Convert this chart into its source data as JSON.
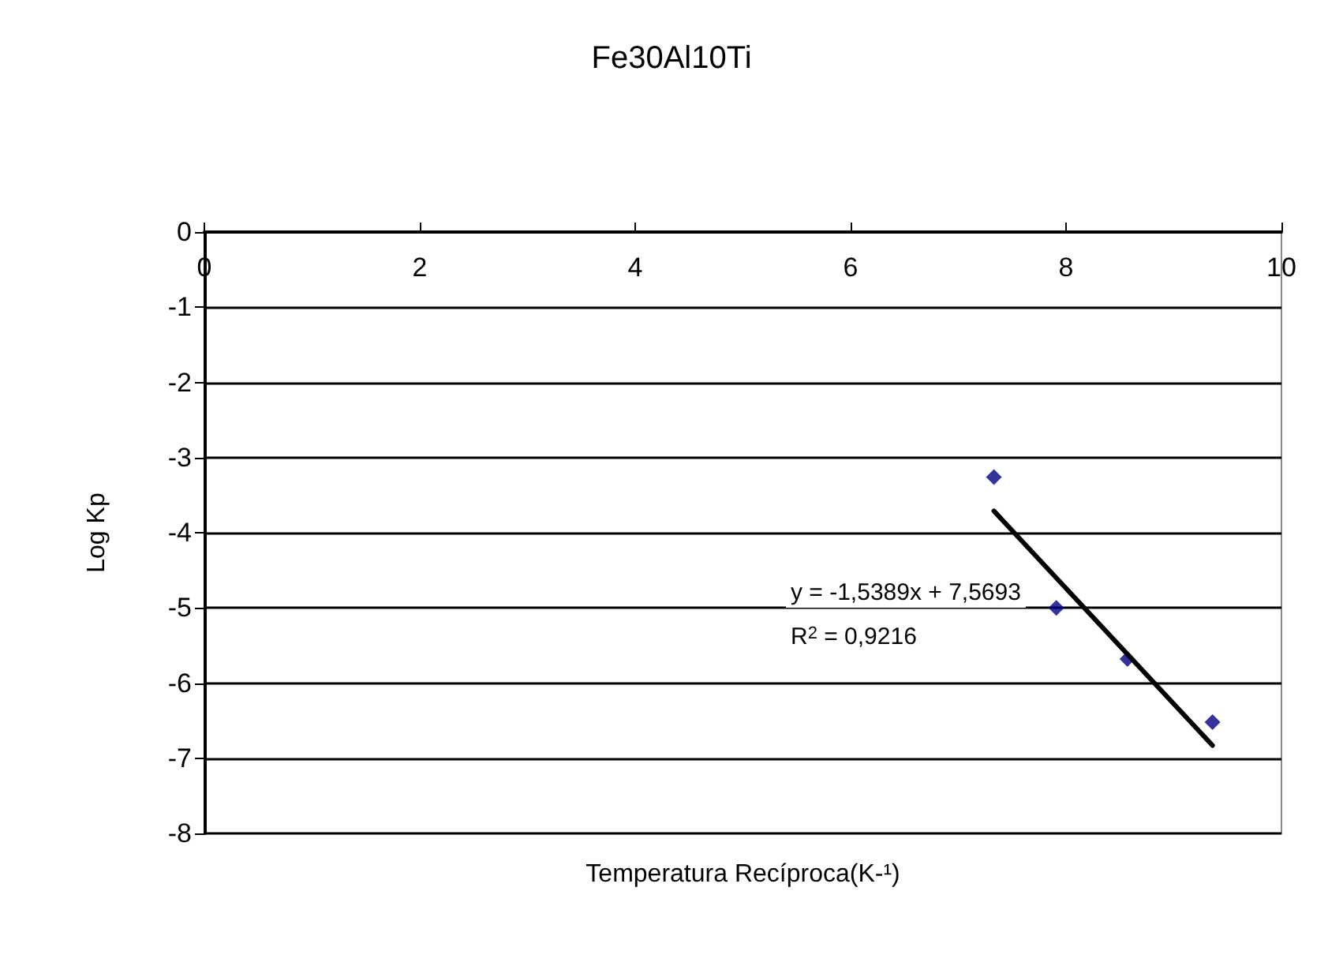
{
  "chart_data": {
    "type": "scatter",
    "title": "Fe30Al10Ti",
    "xlabel": "Temperatura Recíproca(K-¹)",
    "ylabel": "Log Kp",
    "annotations": [
      "y = -1,5389x + 7,5693",
      "R$^{2}$ = 0,9216"
    ],
    "series": [
      {
        "color": "#000080",
        "marker": "diamond",
        "x": [
          7.33,
          7.91,
          8.57,
          9.36
        ],
        "values": [
          -3.26,
          -5.0,
          -5.68,
          -6.52
        ]
      },
      {
        "type": "line",
        "color": "#000000",
        "marker": "none",
        "x": [
          7.33,
          9.36
        ],
        "values": [
          -3.71,
          -6.83
        ]
      }
    ],
    "xlim": [
      0,
      10
    ],
    "xticks": [
      0,
      2,
      4,
      6,
      8,
      10
    ],
    "ylim": [
      -8,
      0
    ],
    "yticks": [
      -8,
      -7,
      -6,
      -5,
      -4,
      -3,
      -2,
      -1,
      0
    ],
    "grid": "y"
  }
}
